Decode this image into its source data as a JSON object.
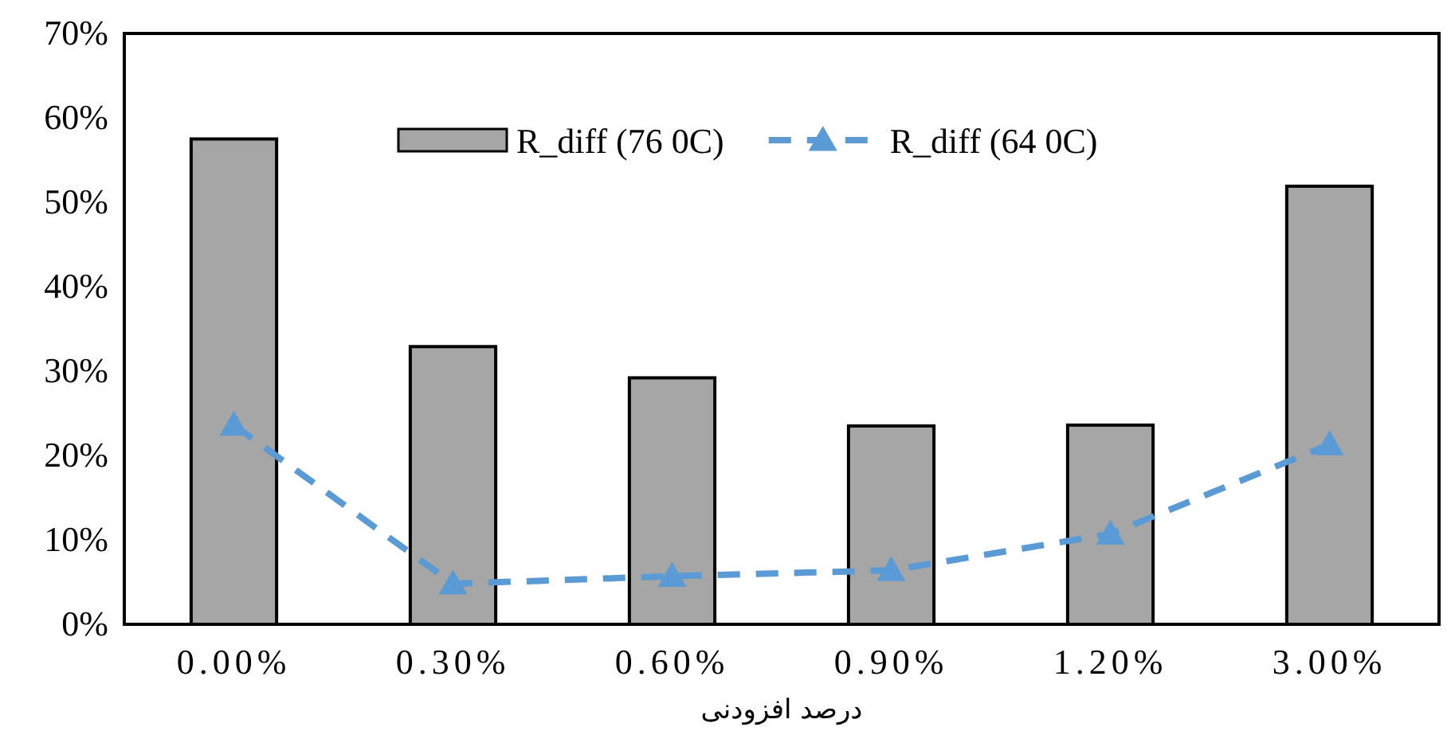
{
  "chart_data": {
    "type": "bar",
    "xlabel": "درصد افزودنی",
    "categories": [
      "0.00%",
      "0.30%",
      "0.60%",
      "0.90%",
      "1.20%",
      "3.00%"
    ],
    "series": [
      {
        "name": "R_diff (76 0C)",
        "color": "#a6a6a6",
        "values": [
          57.5,
          32.9,
          29.2,
          23.5,
          23.6,
          51.9
        ]
      },
      {
        "name": "R_diff (64 0C)",
        "type": "line",
        "color": "#5b9bd5",
        "line_style": "dashed",
        "marker": "triangle",
        "values": [
          23.6,
          4.8,
          5.7,
          6.4,
          10.7,
          21.3
        ]
      }
    ],
    "ylim": [
      0,
      70
    ],
    "yticks": [
      {
        "value": 0,
        "label": "0%"
      },
      {
        "value": 10,
        "label": "10%"
      },
      {
        "value": 20,
        "label": "20%"
      },
      {
        "value": 30,
        "label": "30%"
      },
      {
        "value": 40,
        "label": "40%"
      },
      {
        "value": 50,
        "label": "50%"
      },
      {
        "value": 60,
        "label": "60%"
      },
      {
        "value": 70,
        "label": "70%"
      }
    ],
    "legend": "top"
  }
}
